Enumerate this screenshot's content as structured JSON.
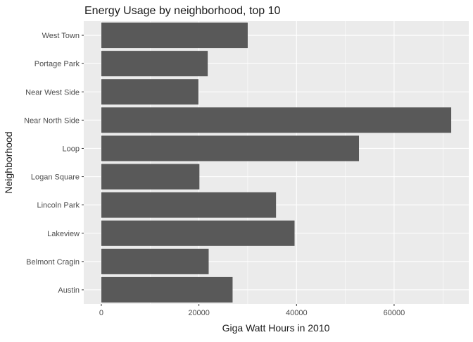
{
  "chart_data": {
    "type": "bar",
    "orientation": "horizontal",
    "title": "Energy Usage by neighborhood, top 10",
    "xlabel": "Giga Watt Hours in 2010",
    "ylabel": "Neighborhood",
    "categories": [
      "West Town",
      "Portage Park",
      "Near West Side",
      "Near North Side",
      "Loop",
      "Logan Square",
      "Lincoln Park",
      "Lakeview",
      "Belmont Cragin",
      "Austin"
    ],
    "values": [
      30000,
      21800,
      19900,
      71700,
      52800,
      20100,
      35800,
      39600,
      22000,
      26900
    ],
    "xlim": [
      -3600,
      75300
    ],
    "xticks": [
      0,
      20000,
      40000,
      60000
    ],
    "xtick_labels": [
      "0",
      "20000",
      "40000",
      "60000"
    ],
    "grid": true,
    "legend": "none",
    "colors": {
      "panel_background": "#ebebeb",
      "grid_major": "#ffffff",
      "bar_fill": "#595959",
      "text": "#1a1a1a",
      "tick_text": "#4d4d4d",
      "tick_mark": "#333333"
    }
  }
}
